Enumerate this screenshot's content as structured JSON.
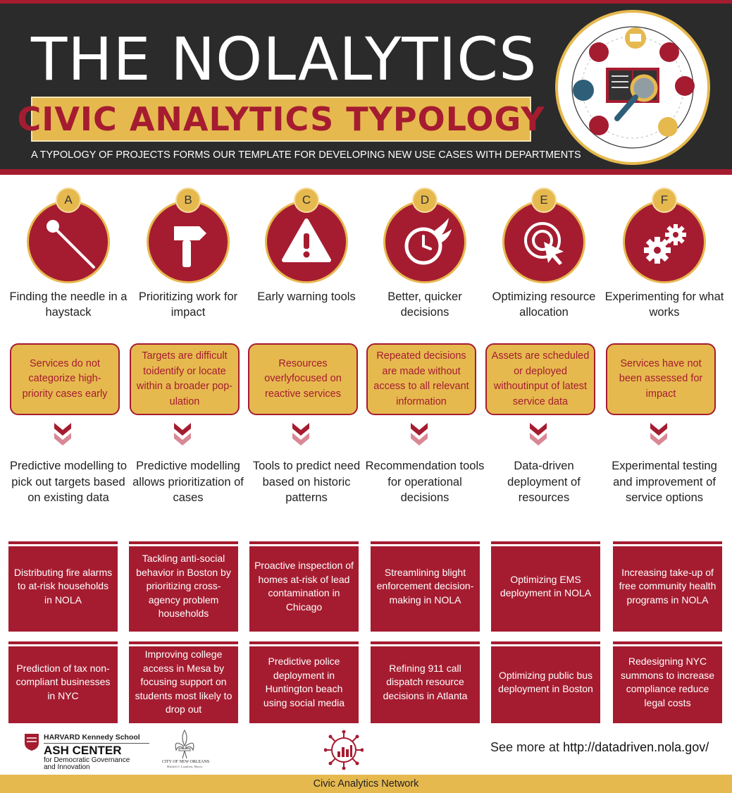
{
  "header": {
    "title": "THE NOLALYTICS",
    "subtitle": "CIVIC ANALYTICS TYPOLOGY",
    "tagline": "A TYPOLOGY OF PROJECTS FORMS OUR TEMPLATE FOR DEVELOPING NEW USE CASES WITH DEPARTMENTS"
  },
  "colors": {
    "crimson": "#a51c30",
    "gold": "#e6b94f",
    "dark": "#2b2b2b",
    "chevron_light": "#d98896"
  },
  "columns": [
    {
      "letter": "A",
      "icon": "needle-icon",
      "heading": "Finding the needle in a haystack",
      "problem": "Services do not categorize high-priority cases early",
      "solution": "Predictive modelling to pick out targets based on existing data",
      "examples": [
        "Distributing fire alarms to at-risk households in NOLA",
        "Prediction of tax non-compliant businesses in NYC"
      ]
    },
    {
      "letter": "B",
      "icon": "hammer-icon",
      "heading": "Prioritizing work for impact",
      "problem": "Targets are difficult toidentify or locate within a broader pop-ulation",
      "solution": "Predictive modelling allows prioritization of cases",
      "examples": [
        "Tackling anti-social behavior in Boston by prioritizing cross-agency problem households",
        "Improving college access in Mesa by focusing support on students most likely to drop out"
      ]
    },
    {
      "letter": "C",
      "icon": "warning-icon",
      "heading": "Early warning tools",
      "problem": "Resources overlyfocused on reactive services",
      "solution": "Tools to predict need based on historic patterns",
      "examples": [
        "Proactive inspection of homes at-risk of lead contamination in Chicago",
        "Predictive police deployment in Huntington beach using social media"
      ]
    },
    {
      "letter": "D",
      "icon": "fast-clock-icon",
      "heading": "Better, quicker decisions",
      "problem": "Repeated decisions are made without access to all relevant information",
      "solution": "Recommendation tools for operational decisions",
      "examples": [
        "Streamlining blight enforcement decision-making in NOLA",
        "Refining 911 call dispatch resource decisions in Atlanta"
      ]
    },
    {
      "letter": "E",
      "icon": "target-cursor-icon",
      "heading": "Optimizing resource allocation",
      "problem": "Assets are scheduled or deployed withoutinput of latest service data",
      "solution": "Data-driven deployment of resources",
      "examples": [
        "Optimizing EMS deployment in NOLA",
        "Optimizing public bus deployment in Boston"
      ]
    },
    {
      "letter": "F",
      "icon": "gears-icon",
      "heading": "Experimenting for what works",
      "problem": "Services have not been assessed for impact",
      "solution": "Experimental testing and improvement of service options",
      "examples": [
        "Increasing take-up of free community health programs in NOLA",
        "Redesigning NYC summons to increase compliance reduce legal costs"
      ]
    }
  ],
  "footer": {
    "hks_name": "HARVARD Kennedy School",
    "ash_name": "ASH CENTER",
    "ash_sub1": "for Democratic Governance",
    "ash_sub2": "and Innovation",
    "nola_name": "CITY OF NEW ORLEANS",
    "nola_mayor": "Mitchell J. Landrieu, Mayor",
    "see_more_prefix": "See more at ",
    "see_more_url": "http://datadriven.nola.gov/",
    "network": "Civic Analytics Network"
  }
}
